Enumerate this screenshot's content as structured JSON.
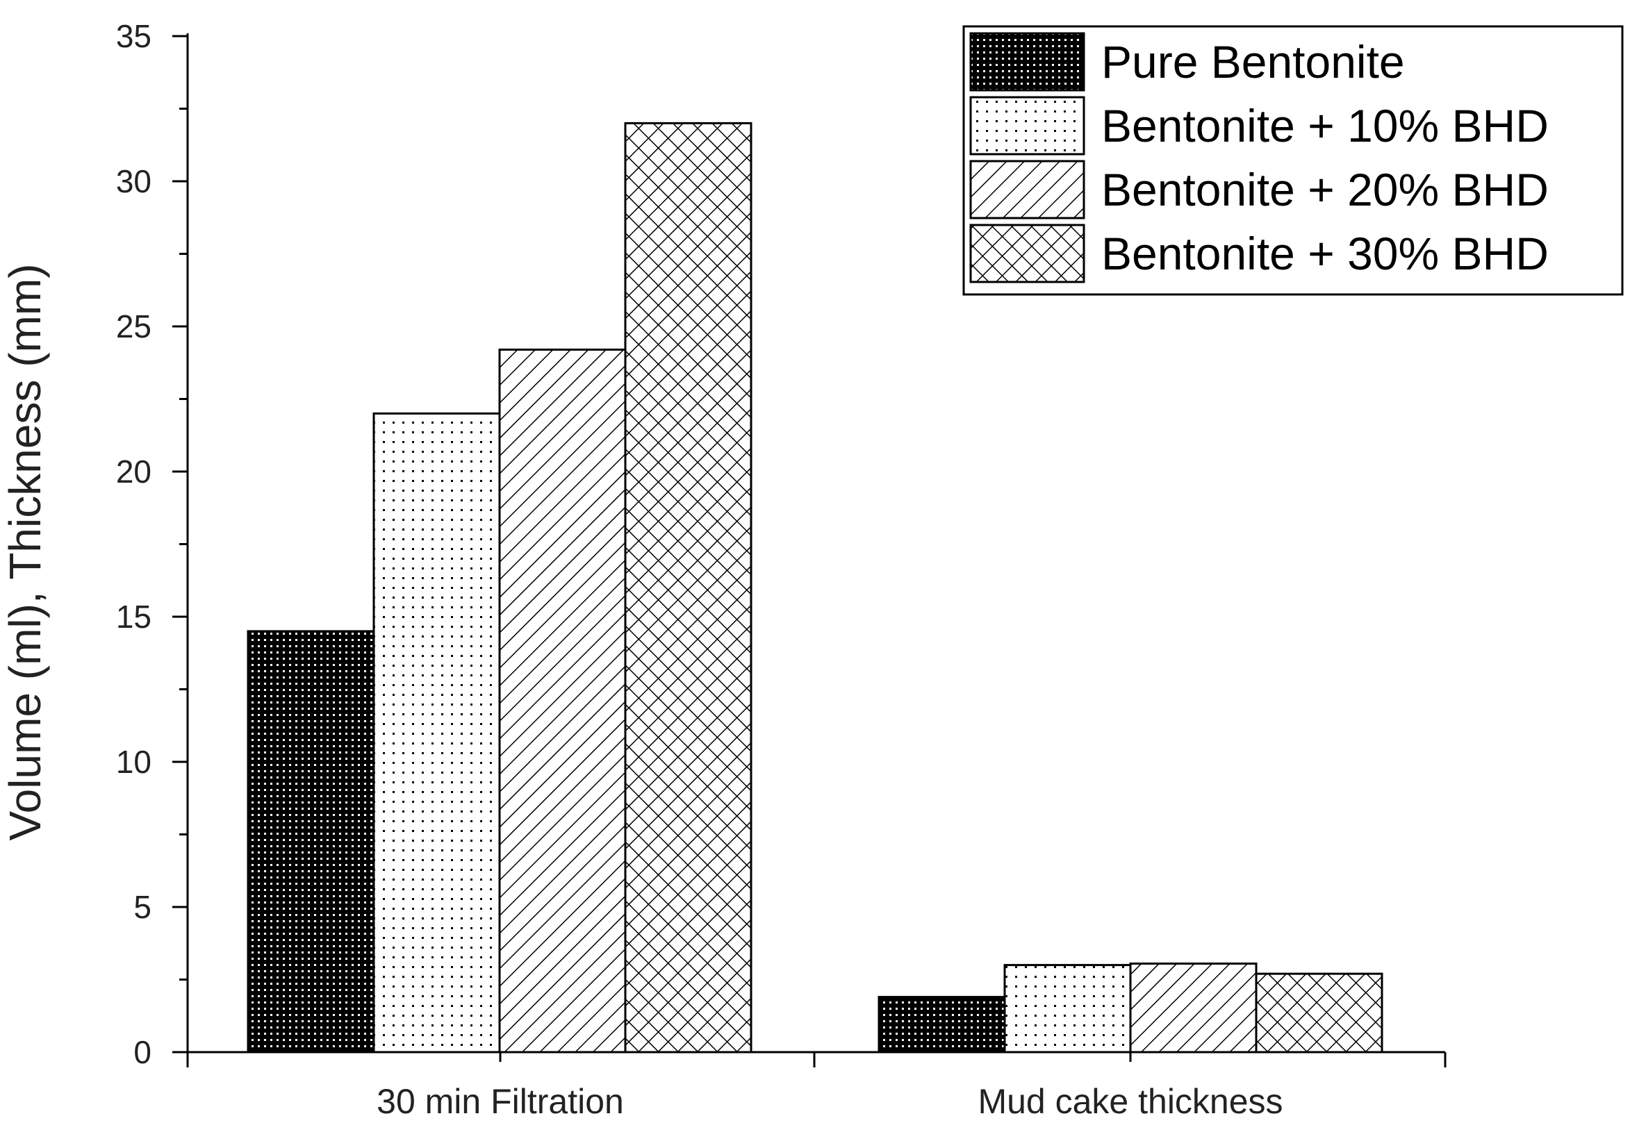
{
  "chart_data": {
    "type": "bar",
    "title": "",
    "xlabel": "",
    "ylabel": "Volume (ml), Thickness (mm)",
    "ylim": [
      0,
      35
    ],
    "yticks": [
      "0",
      "5",
      "10",
      "15",
      "20",
      "25",
      "30",
      "35"
    ],
    "categories": [
      "30 min Filtration",
      "Mud cake thickness"
    ],
    "series": [
      {
        "name": "Pure Bentonite",
        "values": [
          14.5,
          1.9
        ],
        "pattern": "dense-dots",
        "color": "#000000"
      },
      {
        "name": "Bentonite + 10% BHD",
        "values": [
          22.0,
          3.0
        ],
        "pattern": "sparse-dots",
        "color": "#000000"
      },
      {
        "name": "Bentonite + 20% BHD",
        "values": [
          24.2,
          3.05
        ],
        "pattern": "diagonal-hatch",
        "color": "#000000"
      },
      {
        "name": "Bentonite + 30% BHD",
        "values": [
          32.0,
          2.7
        ],
        "pattern": "cross-hatch",
        "color": "#000000"
      }
    ],
    "legend_position": "top-right",
    "grid": false
  }
}
